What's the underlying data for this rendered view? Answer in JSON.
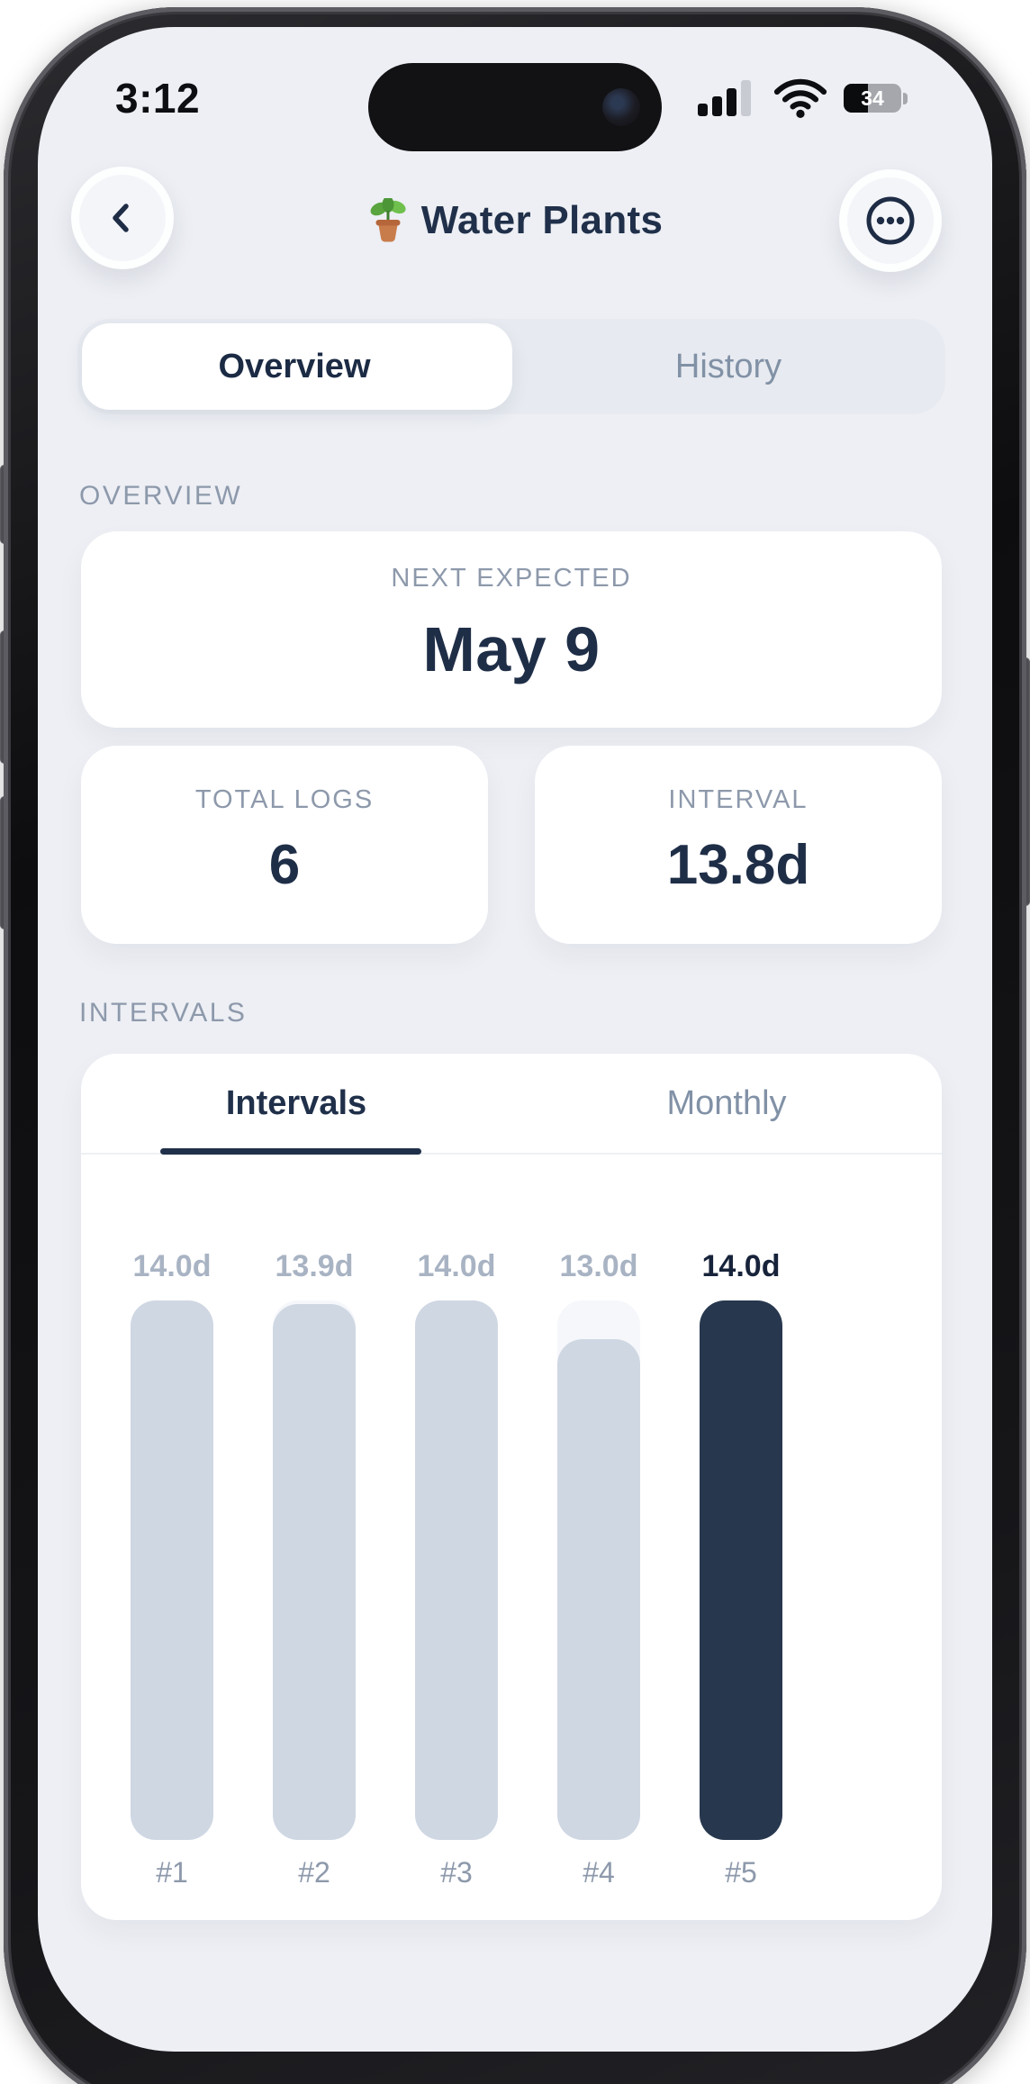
{
  "colors": {
    "app_background": "#edeff4",
    "card_background": "#ffffff",
    "navy_text": "#1f2e47",
    "muted_label": "#8d99ab",
    "bar_light": "#cfd7e3",
    "bar_track": "#f5f7fa",
    "bar_dark": "#27374e"
  },
  "status_bar": {
    "time": "3:12",
    "battery_percent": "34"
  },
  "header": {
    "title": "Water Plants"
  },
  "segmented_tabs": {
    "overview_label": "Overview",
    "history_label": "History",
    "selected": "Overview"
  },
  "overview_section": {
    "heading": "OVERVIEW",
    "next_expected_card": {
      "label": "NEXT EXPECTED",
      "value": "May 9"
    },
    "total_logs_card": {
      "label": "TOTAL LOGS",
      "value": "6"
    },
    "interval_card": {
      "label": "INTERVAL",
      "value": "13.8d"
    }
  },
  "intervals_section": {
    "heading": "INTERVALS",
    "tabs": {
      "intervals_label": "Intervals",
      "monthly_label": "Monthly",
      "selected": "Intervals"
    }
  },
  "chart_data": {
    "type": "bar",
    "title": "Intervals",
    "categories": [
      "#1",
      "#2",
      "#3",
      "#4",
      "#5"
    ],
    "values": [
      14.0,
      13.9,
      14.0,
      13.0,
      14.0
    ],
    "value_labels": [
      "14.0d",
      "13.9d",
      "14.0d",
      "13.0d",
      "14.0d"
    ],
    "unit": "days",
    "ylim": [
      0,
      14
    ],
    "grid": false,
    "legend": false,
    "highlight_index": 4,
    "bar_color": "#cfd7e3",
    "track_color": "#f5f7fa",
    "highlight_color": "#27374e"
  }
}
